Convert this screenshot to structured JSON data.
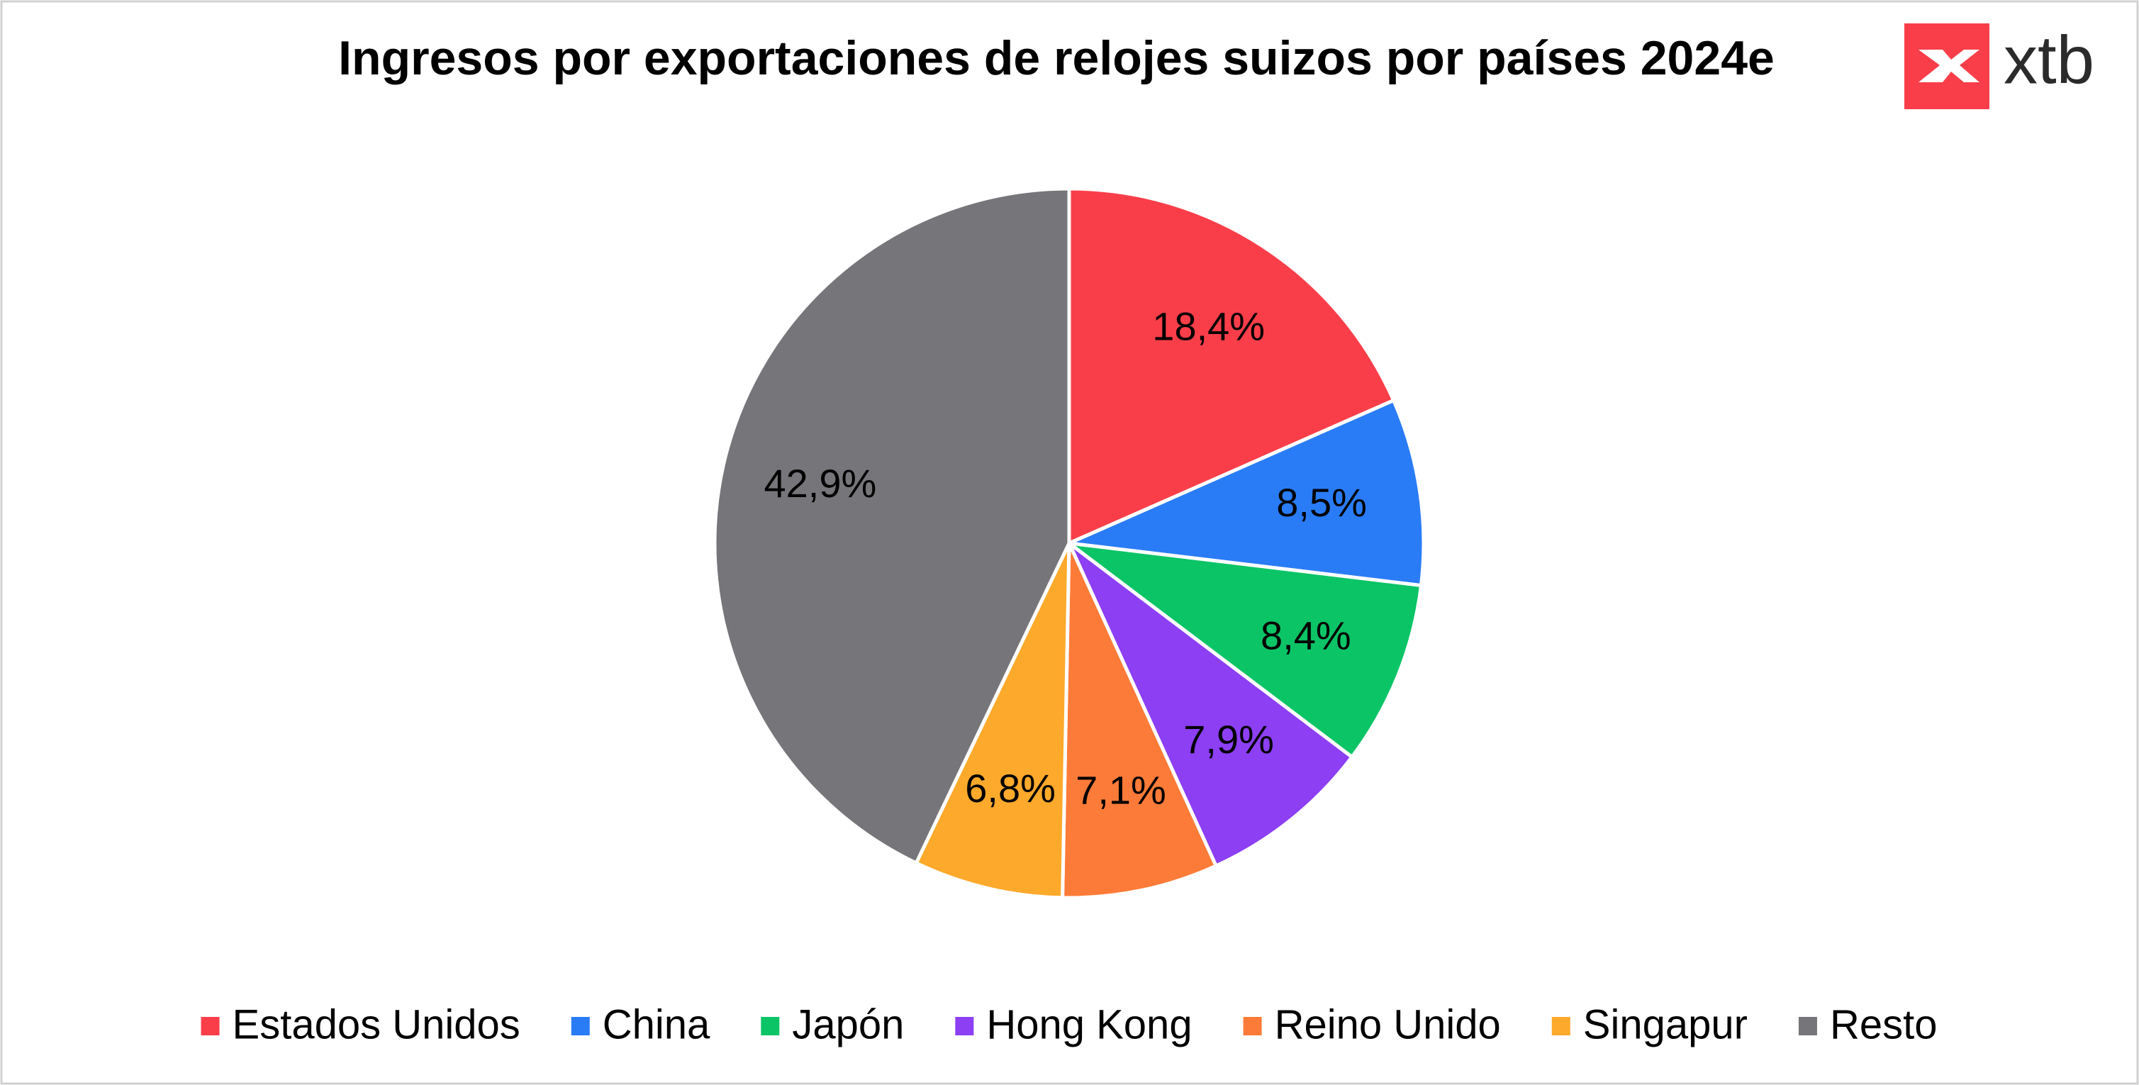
{
  "brand": "xtb",
  "chart_data": {
    "type": "pie",
    "title": "Ingresos por exportaciones de relojes suizos por países 2024e",
    "categories": [
      "Estados Unidos",
      "China",
      "Japón",
      "Hong Kong",
      "Reino Unido",
      "Singapur",
      "Resto"
    ],
    "values": [
      18.4,
      8.5,
      8.4,
      7.9,
      7.1,
      6.8,
      42.9
    ],
    "value_labels": [
      "18,4%",
      "8,5%",
      "8,4%",
      "7,9%",
      "7,1%",
      "6,8%",
      "42,9%"
    ],
    "colors": [
      "#f93e4a",
      "#2a7cf6",
      "#0bc466",
      "#8c3ff3",
      "#fd7b38",
      "#fda92b",
      "#767579"
    ],
    "legend": "bottom"
  }
}
